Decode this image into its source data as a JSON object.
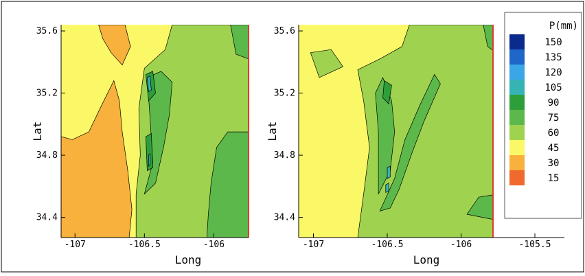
{
  "chart_data": [
    {
      "type": "heatmap",
      "subtype": "filled-contour",
      "title": "",
      "xlabel": "Long",
      "ylabel": "Lat",
      "xlim": [
        -107.1,
        -105.75
      ],
      "ylim": [
        34.27,
        35.64
      ],
      "x_ticks": [
        -107,
        -106.5,
        -106
      ],
      "x_tick_labels": [
        "-107",
        "-106.5",
        "-106"
      ],
      "y_ticks": [
        34.4,
        34.8,
        35.2,
        35.6
      ],
      "y_tick_labels": [
        "34.4",
        "34.8",
        "35.2",
        "35.6"
      ],
      "regions": [
        {
          "level": 15,
          "points": [
            [
              -107.1,
              34.27
            ],
            [
              -106.87,
              34.27
            ],
            [
              -106.82,
              34.36
            ],
            [
              -106.74,
              34.43
            ],
            [
              -106.73,
              34.55
            ],
            [
              -106.81,
              34.62
            ],
            [
              -106.86,
              34.72
            ],
            [
              -106.98,
              34.7
            ],
            [
              -107.1,
              34.75
            ]
          ]
        },
        {
          "level": 15,
          "points": [
            [
              -106.87,
              34.93
            ],
            [
              -106.78,
              34.95
            ],
            [
              -106.76,
              34.85
            ],
            [
              -106.83,
              34.8
            ],
            [
              -106.89,
              34.86
            ]
          ]
        },
        {
          "level": 30,
          "points": [
            [
              -107.1,
              34.27
            ],
            [
              -106.61,
              34.27
            ],
            [
              -106.59,
              34.45
            ],
            [
              -106.62,
              34.7
            ],
            [
              -106.66,
              34.95
            ],
            [
              -106.68,
              35.15
            ],
            [
              -106.72,
              35.28
            ],
            [
              -106.82,
              35.1
            ],
            [
              -106.9,
              34.95
            ],
            [
              -107.02,
              34.9
            ],
            [
              -107.1,
              34.92
            ]
          ]
        },
        {
          "level": 30,
          "points": [
            [
              -106.83,
              35.64
            ],
            [
              -106.64,
              35.64
            ],
            [
              -106.6,
              35.5
            ],
            [
              -106.66,
              35.38
            ],
            [
              -106.74,
              35.46
            ],
            [
              -106.8,
              35.55
            ]
          ]
        },
        {
          "level": 60,
          "points": [
            [
              -106.56,
              34.27
            ],
            [
              -105.75,
              34.27
            ],
            [
              -105.75,
              35.64
            ],
            [
              -106.3,
              35.64
            ],
            [
              -106.35,
              35.48
            ],
            [
              -106.5,
              35.36
            ],
            [
              -106.54,
              35.1
            ],
            [
              -106.53,
              34.8
            ],
            [
              -106.56,
              34.55
            ]
          ]
        },
        {
          "level": 75,
          "points": [
            [
              -106.5,
              34.55
            ],
            [
              -106.44,
              34.75
            ],
            [
              -106.46,
              35.05
            ],
            [
              -106.48,
              35.3
            ],
            [
              -106.38,
              35.34
            ],
            [
              -106.3,
              35.27
            ],
            [
              -106.32,
              35.06
            ],
            [
              -106.36,
              34.86
            ],
            [
              -106.42,
              34.62
            ]
          ]
        },
        {
          "level": 75,
          "points": [
            [
              -106.05,
              34.27
            ],
            [
              -105.75,
              34.27
            ],
            [
              -105.75,
              34.95
            ],
            [
              -105.9,
              34.95
            ],
            [
              -105.98,
              34.85
            ],
            [
              -106.02,
              34.62
            ],
            [
              -106.04,
              34.42
            ]
          ]
        },
        {
          "level": 75,
          "points": [
            [
              -105.88,
              35.64
            ],
            [
              -105.75,
              35.64
            ],
            [
              -105.75,
              35.42
            ],
            [
              -105.84,
              35.45
            ]
          ]
        },
        {
          "level": 90,
          "points": [
            [
              -106.49,
              35.32
            ],
            [
              -106.44,
              35.34
            ],
            [
              -106.42,
              35.2
            ],
            [
              -106.47,
              35.15
            ]
          ]
        },
        {
          "level": 90,
          "points": [
            [
              -106.49,
              34.92
            ],
            [
              -106.45,
              34.94
            ],
            [
              -106.44,
              34.72
            ],
            [
              -106.48,
              34.7
            ]
          ]
        },
        {
          "level": 105,
          "points": [
            [
              -106.48,
              35.3
            ],
            [
              -106.46,
              35.31
            ],
            [
              -106.45,
              35.22
            ],
            [
              -106.47,
              35.21
            ]
          ]
        },
        {
          "level": 105,
          "points": [
            [
              -106.47,
              34.8
            ],
            [
              -106.46,
              34.81
            ],
            [
              -106.46,
              34.74
            ],
            [
              -106.47,
              34.73
            ]
          ]
        }
      ]
    },
    {
      "type": "heatmap",
      "subtype": "filled-contour",
      "title": "",
      "xlabel": "Long",
      "ylabel": "Lat",
      "xlim": [
        -107.1,
        -105.3
      ],
      "ylim": [
        34.27,
        35.64
      ],
      "data_xmax": -105.75,
      "x_ticks": [
        -107,
        -106.5,
        -106,
        -105.5
      ],
      "x_tick_labels": [
        "-107",
        "-106.5",
        "-106",
        "-105.5"
      ],
      "y_ticks": [
        34.4,
        34.8,
        35.2,
        35.6
      ],
      "y_tick_labels": [
        "34.4",
        "34.8",
        "35.2",
        "35.6"
      ],
      "regions": [
        {
          "level": 60,
          "points": [
            [
              -106.7,
              34.27
            ],
            [
              -105.75,
              34.27
            ],
            [
              -105.75,
              35.64
            ],
            [
              -106.35,
              35.64
            ],
            [
              -106.4,
              35.5
            ],
            [
              -106.55,
              35.42
            ],
            [
              -106.7,
              35.35
            ],
            [
              -106.66,
              35.15
            ],
            [
              -106.62,
              34.85
            ],
            [
              -106.66,
              34.55
            ]
          ]
        },
        {
          "level": 60,
          "points": [
            [
              -107.02,
              35.46
            ],
            [
              -106.88,
              35.48
            ],
            [
              -106.8,
              35.37
            ],
            [
              -106.96,
              35.3
            ]
          ]
        },
        {
          "level": 75,
          "points": [
            [
              -106.55,
              34.44
            ],
            [
              -106.45,
              34.65
            ],
            [
              -106.38,
              34.9
            ],
            [
              -106.28,
              35.12
            ],
            [
              -106.18,
              35.32
            ],
            [
              -106.14,
              35.26
            ],
            [
              -106.25,
              35.02
            ],
            [
              -106.33,
              34.82
            ],
            [
              -106.42,
              34.58
            ],
            [
              -106.48,
              34.46
            ]
          ]
        },
        {
          "level": 75,
          "points": [
            [
              -106.56,
              34.55
            ],
            [
              -106.56,
              34.95
            ],
            [
              -106.58,
              35.2
            ],
            [
              -106.53,
              35.3
            ],
            [
              -106.47,
              35.15
            ],
            [
              -106.45,
              34.95
            ],
            [
              -106.48,
              34.7
            ]
          ]
        },
        {
          "level": 75,
          "points": [
            [
              -105.96,
              34.42
            ],
            [
              -105.75,
              34.38
            ],
            [
              -105.75,
              34.55
            ],
            [
              -105.88,
              34.53
            ]
          ]
        },
        {
          "level": 75,
          "points": [
            [
              -105.85,
              35.64
            ],
            [
              -105.75,
              35.64
            ],
            [
              -105.75,
              35.45
            ],
            [
              -105.82,
              35.5
            ]
          ]
        },
        {
          "level": 90,
          "points": [
            [
              -106.52,
              35.28
            ],
            [
              -106.47,
              35.25
            ],
            [
              -106.49,
              35.13
            ],
            [
              -106.53,
              35.17
            ]
          ]
        },
        {
          "level": 105,
          "points": [
            [
              -106.5,
              34.72
            ],
            [
              -106.48,
              34.73
            ],
            [
              -106.48,
              34.66
            ],
            [
              -106.5,
              34.65
            ]
          ]
        },
        {
          "level": 105,
          "points": [
            [
              -106.51,
              34.61
            ],
            [
              -106.49,
              34.62
            ],
            [
              -106.49,
              34.57
            ],
            [
              -106.51,
              34.56
            ]
          ]
        }
      ]
    }
  ],
  "legend": {
    "title": "P(mm)",
    "entries": [
      {
        "label": "150",
        "color": "#0b2b8c"
      },
      {
        "label": "135",
        "color": "#1f66c9"
      },
      {
        "label": "120",
        "color": "#3aa6e8"
      },
      {
        "label": "105",
        "color": "#36b3b4"
      },
      {
        "label": "90",
        "color": "#2e9e3a"
      },
      {
        "label": "75",
        "color": "#5cb84a"
      },
      {
        "label": "60",
        "color": "#9fd24f"
      },
      {
        "label": "45",
        "color": "#fbf868"
      },
      {
        "label": "30",
        "color": "#f7b13c"
      },
      {
        "label": "15",
        "color": "#ef6a2c"
      }
    ]
  },
  "base_color": "#fbf868",
  "frame_edge_color": "#e23b2b"
}
